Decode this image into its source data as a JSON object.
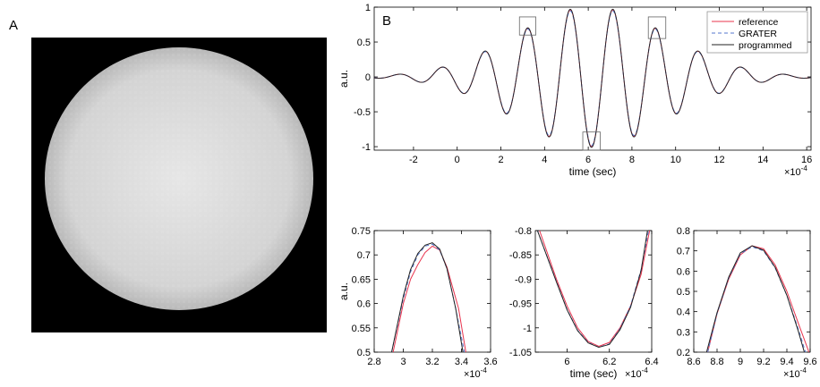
{
  "panel_labels": {
    "a": "A",
    "b": "B"
  },
  "colors": {
    "reference": "#e8344e",
    "grater": "#5577cc",
    "programmed": "#222222",
    "background": "#ffffff",
    "image_bg": "#000000",
    "disk": "#dcdcdc"
  },
  "chart_data": [
    {
      "id": "main",
      "type": "line",
      "title": "",
      "xlabel": "time (sec)",
      "ylabel": "a.u.",
      "xexponent": "×10",
      "xexponent_power": "-4",
      "xlim": [
        -3.8,
        16.2
      ],
      "ylim": [
        -1.05,
        1.0
      ],
      "xticks": [
        -2,
        0,
        2,
        4,
        6,
        8,
        10,
        12,
        14,
        16
      ],
      "xtick_labels": [
        "-2",
        "0",
        "2",
        "4",
        "6",
        "8",
        "10",
        "12",
        "14",
        "16"
      ],
      "yticks": [
        -1,
        -0.5,
        0,
        0.5,
        1
      ],
      "ytick_labels": [
        "-1",
        "-0.5",
        "0",
        "0.5",
        "1"
      ],
      "legend": {
        "position": "top-right",
        "entries": [
          "reference",
          "GRATER",
          "programmed"
        ]
      },
      "waveform": {
        "center": 6.15,
        "frequency": 0.51,
        "envelope_sigma": 3.45,
        "x_start": -3.8,
        "x_end": 16.2
      },
      "series": [
        {
          "name": "reference",
          "style": "solid"
        },
        {
          "name": "GRATER",
          "style": "dashed"
        },
        {
          "name": "programmed",
          "style": "solid"
        }
      ],
      "zoom_regions": [
        {
          "x": [
            2.85,
            3.6
          ],
          "y": [
            0.6,
            0.86
          ]
        },
        {
          "x": [
            5.75,
            6.55
          ],
          "y": [
            -1.05,
            -0.79
          ]
        },
        {
          "x": [
            8.75,
            9.55
          ],
          "y": [
            0.55,
            0.86
          ]
        }
      ]
    },
    {
      "id": "zoom1",
      "type": "line",
      "xlabel": "",
      "ylabel": "a.u.",
      "xexponent": "×10",
      "xexponent_power": "-4",
      "xlim": [
        2.8,
        3.6
      ],
      "ylim": [
        0.5,
        0.75
      ],
      "xticks": [
        2.8,
        3.0,
        3.2,
        3.4,
        3.6
      ],
      "xtick_labels": [
        "2.8",
        "3",
        "3.2",
        "3.4",
        "3.6"
      ],
      "yticks": [
        0.5,
        0.55,
        0.6,
        0.65,
        0.7,
        0.75
      ],
      "ytick_labels": [
        "0.5",
        "0.55",
        "0.6",
        "0.65",
        "0.7",
        "0.75"
      ],
      "series": [
        {
          "name": "reference",
          "x": [
            2.93,
            3.0,
            3.05,
            3.1,
            3.15,
            3.2,
            3.25,
            3.3,
            3.38,
            3.43
          ],
          "y": [
            0.5,
            0.6,
            0.65,
            0.68,
            0.705,
            0.718,
            0.71,
            0.675,
            0.59,
            0.5
          ]
        },
        {
          "name": "GRATER",
          "x": [
            2.92,
            3.0,
            3.05,
            3.1,
            3.15,
            3.2,
            3.25,
            3.3,
            3.36,
            3.42
          ],
          "y": [
            0.5,
            0.61,
            0.665,
            0.7,
            0.718,
            0.722,
            0.71,
            0.672,
            0.59,
            0.5
          ]
        },
        {
          "name": "programmed",
          "x": [
            2.92,
            3.0,
            3.05,
            3.1,
            3.15,
            3.2,
            3.25,
            3.3,
            3.36,
            3.41
          ],
          "y": [
            0.5,
            0.615,
            0.67,
            0.703,
            0.72,
            0.725,
            0.712,
            0.672,
            0.59,
            0.5
          ]
        }
      ]
    },
    {
      "id": "zoom2",
      "type": "line",
      "xlabel": "time (sec)",
      "ylabel": "",
      "xexponent": "×10",
      "xexponent_power": "-4",
      "xlim": [
        5.85,
        6.4
      ],
      "ylim": [
        -1.05,
        -0.8
      ],
      "xticks": [
        6.0,
        6.2,
        6.4
      ],
      "xtick_labels": [
        "6",
        "6.2",
        "6.4"
      ],
      "yticks": [
        -1.05,
        -1.0,
        -0.95,
        -0.9,
        -0.85,
        -0.8
      ],
      "ytick_labels": [
        "-1.05",
        "-1",
        "-0.95",
        "-0.9",
        "-0.85",
        "-0.8"
      ],
      "series": [
        {
          "name": "reference",
          "x": [
            5.87,
            5.95,
            6.0,
            6.05,
            6.1,
            6.15,
            6.2,
            6.25,
            6.3,
            6.35,
            6.39
          ],
          "y": [
            -0.8,
            -0.9,
            -0.955,
            -1.0,
            -1.028,
            -1.038,
            -1.03,
            -1.0,
            -0.955,
            -0.89,
            -0.8
          ]
        },
        {
          "name": "GRATER",
          "x": [
            5.86,
            5.95,
            6.0,
            6.05,
            6.1,
            6.15,
            6.2,
            6.25,
            6.3,
            6.35,
            6.385
          ],
          "y": [
            -0.8,
            -0.905,
            -0.962,
            -1.005,
            -1.03,
            -1.04,
            -1.033,
            -1.002,
            -0.955,
            -0.88,
            -0.8
          ]
        },
        {
          "name": "programmed",
          "x": [
            5.86,
            5.95,
            6.0,
            6.05,
            6.1,
            6.15,
            6.2,
            6.25,
            6.3,
            6.35,
            6.38
          ],
          "y": [
            -0.8,
            -0.906,
            -0.963,
            -1.006,
            -1.031,
            -1.04,
            -1.034,
            -1.004,
            -0.958,
            -0.882,
            -0.8
          ]
        }
      ]
    },
    {
      "id": "zoom3",
      "type": "line",
      "xlabel": "",
      "ylabel": "",
      "xexponent": "×10",
      "xexponent_power": "-4",
      "xlim": [
        8.6,
        9.6
      ],
      "ylim": [
        0.2,
        0.8
      ],
      "xticks": [
        8.6,
        8.8,
        9.0,
        9.2,
        9.4,
        9.6
      ],
      "xtick_labels": [
        "8.6",
        "8.8",
        "9",
        "9.2",
        "9.4",
        "9.6"
      ],
      "yticks": [
        0.2,
        0.3,
        0.4,
        0.5,
        0.6,
        0.7,
        0.8
      ],
      "ytick_labels": [
        "0.2",
        "0.3",
        "0.4",
        "0.5",
        "0.6",
        "0.7",
        "0.8"
      ],
      "series": [
        {
          "name": "reference",
          "x": [
            8.72,
            8.8,
            8.9,
            9.0,
            9.1,
            9.2,
            9.3,
            9.4,
            9.5,
            9.59
          ],
          "y": [
            0.2,
            0.39,
            0.56,
            0.68,
            0.725,
            0.71,
            0.63,
            0.5,
            0.34,
            0.2
          ]
        },
        {
          "name": "GRATER",
          "x": [
            8.72,
            8.8,
            8.9,
            9.0,
            9.1,
            9.2,
            9.3,
            9.4,
            9.5,
            9.56
          ],
          "y": [
            0.2,
            0.39,
            0.565,
            0.685,
            0.72,
            0.7,
            0.615,
            0.48,
            0.31,
            0.2
          ]
        },
        {
          "name": "programmed",
          "x": [
            8.71,
            8.8,
            8.9,
            9.0,
            9.1,
            9.2,
            9.3,
            9.4,
            9.5,
            9.55
          ],
          "y": [
            0.2,
            0.395,
            0.57,
            0.69,
            0.725,
            0.703,
            0.618,
            0.48,
            0.3,
            0.2
          ]
        }
      ]
    }
  ]
}
